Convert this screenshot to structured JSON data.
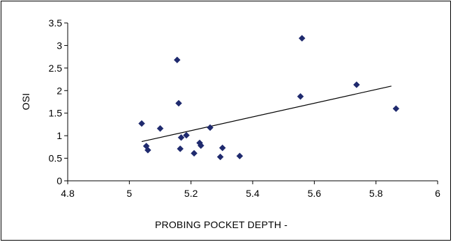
{
  "chart_data": {
    "type": "scatter",
    "title": "",
    "xlabel": "PROBING POCKET DEPTH -",
    "ylabel": "OSI",
    "xlim": [
      4.8,
      6
    ],
    "ylim": [
      0,
      3.5
    ],
    "x_ticks": [
      "4.8",
      "5",
      "5.2",
      "5.4",
      "5.6",
      "5.8",
      "6"
    ],
    "y_ticks": [
      "0",
      "0.5",
      "1",
      "1.5",
      "2",
      "2.5",
      "3",
      "3.5"
    ],
    "grid": false,
    "legend": "none",
    "marker_color": "#1f2a6e",
    "trendline_color": "#000000",
    "series": [
      {
        "marker": "diamond",
        "points": [
          {
            "x": 5.04,
            "y": 1.27
          },
          {
            "x": 5.055,
            "y": 0.77
          },
          {
            "x": 5.06,
            "y": 0.68
          },
          {
            "x": 5.1,
            "y": 1.16
          },
          {
            "x": 5.155,
            "y": 2.68
          },
          {
            "x": 5.16,
            "y": 1.72
          },
          {
            "x": 5.165,
            "y": 0.71
          },
          {
            "x": 5.168,
            "y": 0.96
          },
          {
            "x": 5.185,
            "y": 1.01
          },
          {
            "x": 5.21,
            "y": 0.61
          },
          {
            "x": 5.228,
            "y": 0.84
          },
          {
            "x": 5.232,
            "y": 0.78
          },
          {
            "x": 5.262,
            "y": 1.18
          },
          {
            "x": 5.295,
            "y": 0.53
          },
          {
            "x": 5.302,
            "y": 0.73
          },
          {
            "x": 5.358,
            "y": 0.55
          },
          {
            "x": 5.555,
            "y": 1.87
          },
          {
            "x": 5.56,
            "y": 3.16
          },
          {
            "x": 5.737,
            "y": 2.13
          },
          {
            "x": 5.865,
            "y": 1.6
          }
        ]
      }
    ],
    "trendline": {
      "x": [
        5.04,
        5.85
      ],
      "y": [
        0.87,
        2.1
      ]
    }
  }
}
